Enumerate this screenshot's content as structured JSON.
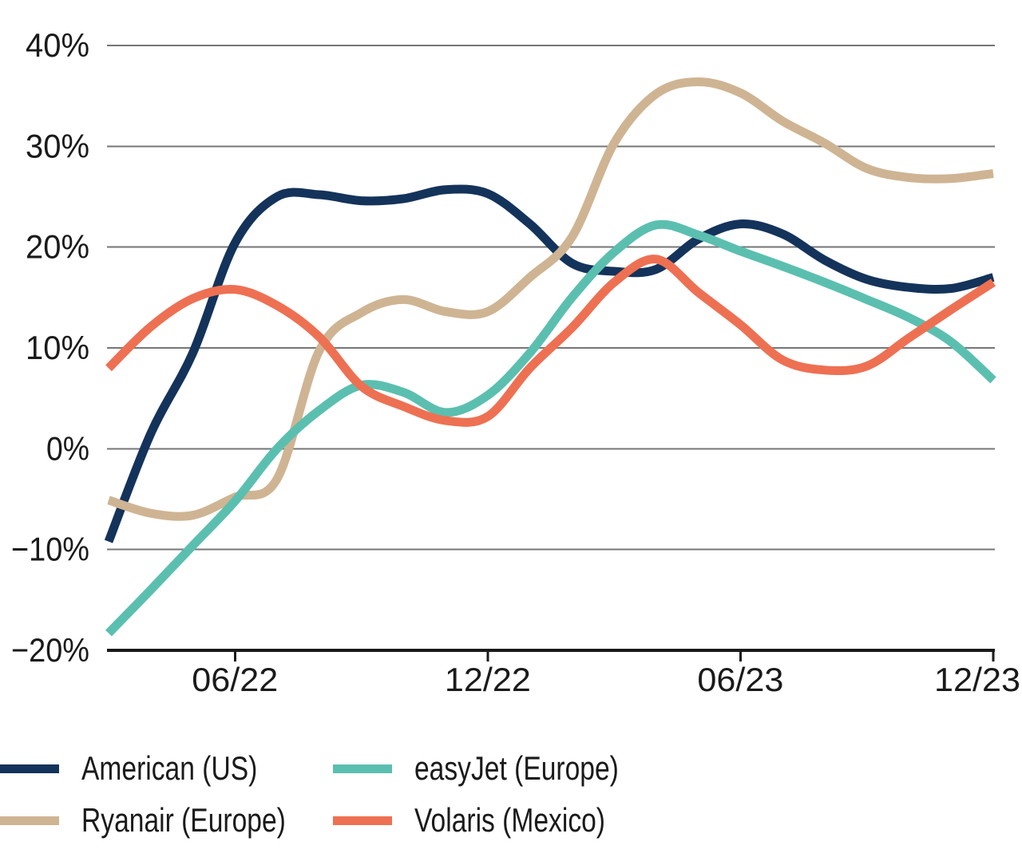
{
  "page": {
    "background": "#ffffff",
    "text_color": "#1a1a1a"
  },
  "chart_data": {
    "type": "line",
    "title": "",
    "x": [
      "03/22",
      "04/22",
      "05/22",
      "06/22",
      "07/22",
      "08/22",
      "09/22",
      "10/22",
      "11/22",
      "12/22",
      "01/23",
      "02/23",
      "03/23",
      "04/23",
      "05/23",
      "06/23",
      "07/23",
      "08/23",
      "09/23",
      "10/23",
      "11/23",
      "12/23"
    ],
    "x_tick_labels": [
      "06/22",
      "12/22",
      "06/23",
      "12/23"
    ],
    "x_tick_month_index": [
      3,
      9,
      15,
      21
    ],
    "ylim": [
      -20,
      40
    ],
    "y_ticks": [
      40,
      30,
      20,
      10,
      0,
      -10,
      -20
    ],
    "y_tick_labels": [
      "40%",
      "30%",
      "20%",
      "10%",
      "0%",
      "−10%",
      "−20%"
    ],
    "unit": "%",
    "grid": "horizontal-only",
    "axis_color": "#1a1a1a",
    "gridline_color": "#767676",
    "legend_position": "below-chart-two-columns",
    "series": [
      {
        "name": "American (US)",
        "color": "#14335B",
        "values": [
          -9.2,
          1.5,
          9.5,
          20.4,
          25.0,
          25.2,
          24.6,
          24.8,
          25.7,
          25.3,
          22.3,
          18.4,
          17.6,
          17.8,
          20.8,
          22.3,
          21.3,
          18.7,
          16.8,
          16.0,
          15.9,
          17.0
        ]
      },
      {
        "name": "Ryanair (Europe)",
        "color": "#CFB493",
        "values": [
          -5.1,
          -6.4,
          -6.6,
          -4.8,
          -3.0,
          9.7,
          13.5,
          14.8,
          13.6,
          13.6,
          17.0,
          21.0,
          30.3,
          35.2,
          36.4,
          35.3,
          32.5,
          30.3,
          27.8,
          26.9,
          26.8,
          27.3
        ]
      },
      {
        "name": "easyJet (Europe)",
        "color": "#5BBFB0",
        "values": [
          -18.3,
          -14.0,
          -9.6,
          -5.2,
          0.0,
          3.8,
          6.3,
          5.6,
          3.6,
          5.3,
          9.5,
          15.0,
          19.5,
          22.2,
          21.2,
          19.6,
          18.1,
          16.5,
          14.8,
          13.0,
          10.6,
          6.8
        ]
      },
      {
        "name": "Volaris (Mexico)",
        "color": "#EE7052",
        "values": [
          8.0,
          12.1,
          14.9,
          15.8,
          14.2,
          11.1,
          6.2,
          4.2,
          2.8,
          3.2,
          8.0,
          12.0,
          16.5,
          18.8,
          15.5,
          12.3,
          8.8,
          7.8,
          8.2,
          11.0,
          13.8,
          16.5
        ]
      }
    ]
  },
  "legend": {
    "items": [
      {
        "label": "American (US)",
        "color": "#14335B"
      },
      {
        "label": "easyJet (Europe)",
        "color": "#5BBFB0"
      },
      {
        "label": "Ryanair (Europe)",
        "color": "#CFB493"
      },
      {
        "label": "Volaris (Mexico)",
        "color": "#EE7052"
      }
    ]
  }
}
